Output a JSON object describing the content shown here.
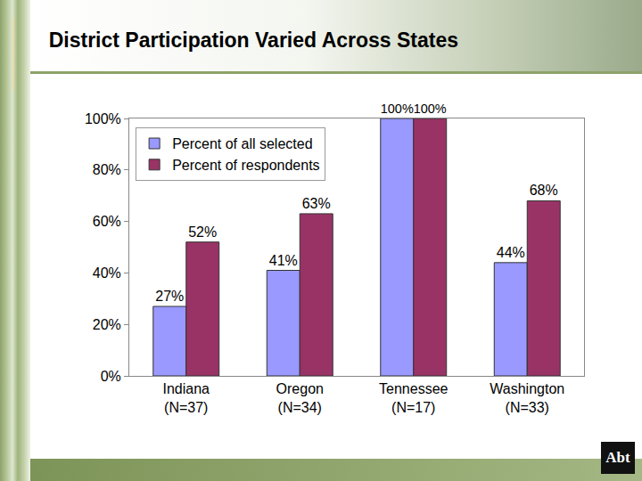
{
  "chart_data": {
    "type": "bar",
    "title": "District Participation Varied Across States",
    "categories": [
      "Indiana\n(N=37)",
      "Oregon\n(N=34)",
      "Tennessee\n(N=17)",
      "Washington\n(N=33)"
    ],
    "series": [
      {
        "name": "Percent of all selected",
        "color": "#9999ff",
        "values": [
          27,
          41,
          100,
          44
        ],
        "value_labels": [
          "27%",
          "41%",
          "100%",
          "44%"
        ]
      },
      {
        "name": "Percent of respondents",
        "color": "#993366",
        "values": [
          52,
          63,
          100,
          68
        ],
        "value_labels": [
          "52%",
          "63%",
          "100%",
          "68%"
        ]
      }
    ],
    "ylim": [
      0,
      100
    ],
    "yticks": [
      {
        "value": 0,
        "label": "0%"
      },
      {
        "value": 20,
        "label": "20%"
      },
      {
        "value": 40,
        "label": "40%"
      },
      {
        "value": 60,
        "label": "60%"
      },
      {
        "value": 80,
        "label": "80%"
      },
      {
        "value": 100,
        "label": "100%"
      }
    ],
    "grid": false,
    "legend": "top left",
    "data_labels": true
  },
  "logo": "Abt"
}
